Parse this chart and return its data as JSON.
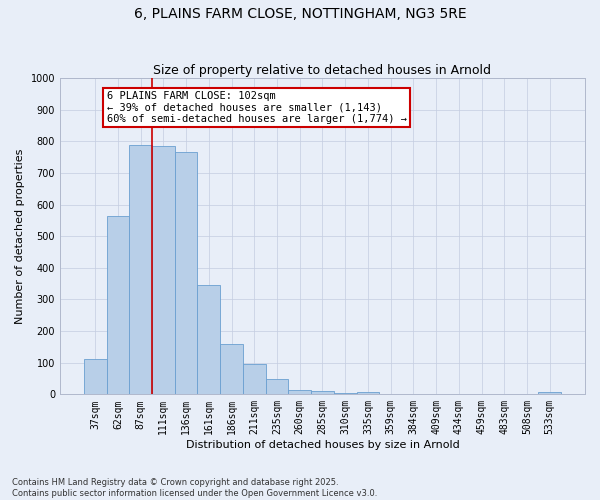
{
  "title": "6, PLAINS FARM CLOSE, NOTTINGHAM, NG3 5RE",
  "subtitle": "Size of property relative to detached houses in Arnold",
  "xlabel": "Distribution of detached houses by size in Arnold",
  "ylabel": "Number of detached properties",
  "categories": [
    "37sqm",
    "62sqm",
    "87sqm",
    "111sqm",
    "136sqm",
    "161sqm",
    "186sqm",
    "211sqm",
    "235sqm",
    "260sqm",
    "285sqm",
    "310sqm",
    "335sqm",
    "359sqm",
    "384sqm",
    "409sqm",
    "434sqm",
    "459sqm",
    "483sqm",
    "508sqm",
    "533sqm"
  ],
  "values": [
    113,
    563,
    790,
    785,
    767,
    345,
    160,
    95,
    50,
    15,
    10,
    5,
    8,
    0,
    0,
    0,
    0,
    0,
    0,
    0,
    8
  ],
  "bar_color": "#b8cfe8",
  "bar_edge_color": "#6a9fd0",
  "background_color": "#e8eef8",
  "vline_color": "#cc0000",
  "vline_x_index": 2.5,
  "annotation_text": "6 PLAINS FARM CLOSE: 102sqm\n← 39% of detached houses are smaller (1,143)\n60% of semi-detached houses are larger (1,774) →",
  "annotation_box_color": "#ffffff",
  "annotation_box_edge": "#cc0000",
  "ylim": [
    0,
    1000
  ],
  "yticks": [
    0,
    100,
    200,
    300,
    400,
    500,
    600,
    700,
    800,
    900,
    1000
  ],
  "footer": "Contains HM Land Registry data © Crown copyright and database right 2025.\nContains public sector information licensed under the Open Government Licence v3.0.",
  "title_fontsize": 10,
  "subtitle_fontsize": 9,
  "tick_fontsize": 7,
  "ylabel_fontsize": 8,
  "xlabel_fontsize": 8,
  "annotation_fontsize": 7.5,
  "footer_fontsize": 6
}
